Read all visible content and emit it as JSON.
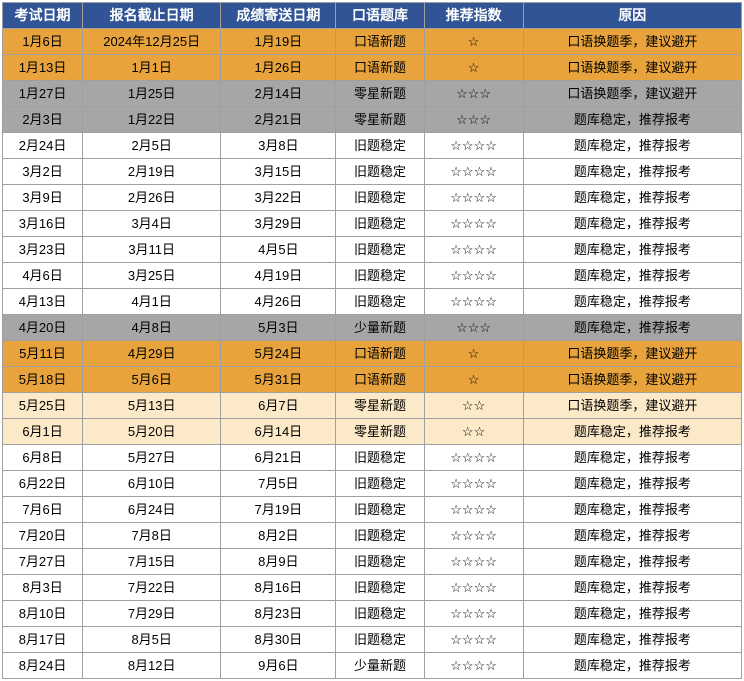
{
  "colors": {
    "header_bg": "#305496",
    "header_fg": "#ffffff",
    "orange_bg": "#e8a33d",
    "gray_bg": "#a6a6a6",
    "lightyellow_bg": "#fce9c7",
    "white_bg": "#ffffff",
    "body_fg": "#000000"
  },
  "columns": [
    "考试日期",
    "报名截止日期",
    "成绩寄送日期",
    "口语题库",
    "推荐指数",
    "原因"
  ],
  "rows": [
    {
      "bg": "orange",
      "cells": [
        "1月6日",
        "2024年12月25日",
        "1月19日",
        "口语新题",
        "☆",
        "口语换题季，建议避开"
      ]
    },
    {
      "bg": "orange",
      "cells": [
        "1月13日",
        "1月1日",
        "1月26日",
        "口语新题",
        "☆",
        "口语换题季，建议避开"
      ]
    },
    {
      "bg": "gray",
      "cells": [
        "1月27日",
        "1月25日",
        "2月14日",
        "零星新题",
        "☆☆☆",
        "口语换题季，建议避开"
      ]
    },
    {
      "bg": "gray",
      "cells": [
        "2月3日",
        "1月22日",
        "2月21日",
        "零星新题",
        "☆☆☆",
        "题库稳定，推荐报考"
      ]
    },
    {
      "bg": "white",
      "cells": [
        "2月24日",
        "2月5日",
        "3月8日",
        "旧题稳定",
        "☆☆☆☆",
        "题库稳定，推荐报考"
      ]
    },
    {
      "bg": "white",
      "cells": [
        "3月2日",
        "2月19日",
        "3月15日",
        "旧题稳定",
        "☆☆☆☆",
        "题库稳定，推荐报考"
      ]
    },
    {
      "bg": "white",
      "cells": [
        "3月9日",
        "2月26日",
        "3月22日",
        "旧题稳定",
        "☆☆☆☆",
        "题库稳定，推荐报考"
      ]
    },
    {
      "bg": "white",
      "cells": [
        "3月16日",
        "3月4日",
        "3月29日",
        "旧题稳定",
        "☆☆☆☆",
        "题库稳定，推荐报考"
      ]
    },
    {
      "bg": "white",
      "cells": [
        "3月23日",
        "3月11日",
        "4月5日",
        "旧题稳定",
        "☆☆☆☆",
        "题库稳定，推荐报考"
      ]
    },
    {
      "bg": "white",
      "cells": [
        "4月6日",
        "3月25日",
        "4月19日",
        "旧题稳定",
        "☆☆☆☆",
        "题库稳定，推荐报考"
      ]
    },
    {
      "bg": "white",
      "cells": [
        "4月13日",
        "4月1日",
        "4月26日",
        "旧题稳定",
        "☆☆☆☆",
        "题库稳定，推荐报考"
      ]
    },
    {
      "bg": "gray",
      "cells": [
        "4月20日",
        "4月8日",
        "5月3日",
        "少量新题",
        "☆☆☆",
        "题库稳定，推荐报考"
      ]
    },
    {
      "bg": "orange",
      "cells": [
        "5月11日",
        "4月29日",
        "5月24日",
        "口语新题",
        "☆",
        "口语换题季，建议避开"
      ]
    },
    {
      "bg": "orange",
      "cells": [
        "5月18日",
        "5月6日",
        "5月31日",
        "口语新题",
        "☆",
        "口语换题季，建议避开"
      ]
    },
    {
      "bg": "lightyellow",
      "cells": [
        "5月25日",
        "5月13日",
        "6月7日",
        "零星新题",
        "☆☆",
        "口语换题季，建议避开"
      ]
    },
    {
      "bg": "lightyellow",
      "cells": [
        "6月1日",
        "5月20日",
        "6月14日",
        "零星新题",
        "☆☆",
        "题库稳定，推荐报考"
      ]
    },
    {
      "bg": "white",
      "cells": [
        "6月8日",
        "5月27日",
        "6月21日",
        "旧题稳定",
        "☆☆☆☆",
        "题库稳定，推荐报考"
      ]
    },
    {
      "bg": "white",
      "cells": [
        "6月22日",
        "6月10日",
        "7月5日",
        "旧题稳定",
        "☆☆☆☆",
        "题库稳定，推荐报考"
      ]
    },
    {
      "bg": "white",
      "cells": [
        "7月6日",
        "6月24日",
        "7月19日",
        "旧题稳定",
        "☆☆☆☆",
        "题库稳定，推荐报考"
      ]
    },
    {
      "bg": "white",
      "cells": [
        "7月20日",
        "7月8日",
        "8月2日",
        "旧题稳定",
        "☆☆☆☆",
        "题库稳定，推荐报考"
      ]
    },
    {
      "bg": "white",
      "cells": [
        "7月27日",
        "7月15日",
        "8月9日",
        "旧题稳定",
        "☆☆☆☆",
        "题库稳定，推荐报考"
      ]
    },
    {
      "bg": "white",
      "cells": [
        "8月3日",
        "7月22日",
        "8月16日",
        "旧题稳定",
        "☆☆☆☆",
        "题库稳定，推荐报考"
      ]
    },
    {
      "bg": "white",
      "cells": [
        "8月10日",
        "7月29日",
        "8月23日",
        "旧题稳定",
        "☆☆☆☆",
        "题库稳定，推荐报考"
      ]
    },
    {
      "bg": "white",
      "cells": [
        "8月17日",
        "8月5日",
        "8月30日",
        "旧题稳定",
        "☆☆☆☆",
        "题库稳定，推荐报考"
      ]
    },
    {
      "bg": "white",
      "cells": [
        "8月24日",
        "8月12日",
        "9月6日",
        "少量新题",
        "☆☆☆☆",
        "题库稳定，推荐报考"
      ]
    }
  ]
}
